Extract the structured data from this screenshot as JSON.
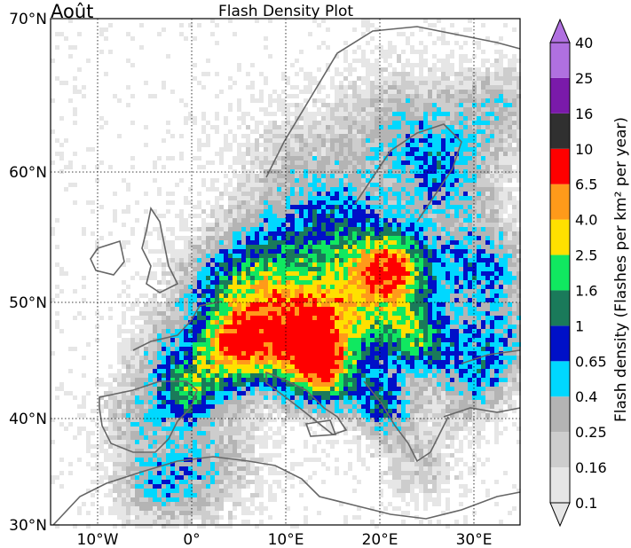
{
  "month_label": "Août",
  "title": "Flash Density Plot",
  "colorbar": {
    "label": "Flash density (Flashes per km² per year)",
    "bins": [
      {
        "label": "0.1",
        "color": "#e6e6e6"
      },
      {
        "label": "0.16",
        "color": "#cdcdcd"
      },
      {
        "label": "0.25",
        "color": "#b4b4b4"
      },
      {
        "label": "0.4",
        "color": "#00d8ff"
      },
      {
        "label": "0.65",
        "color": "#0010c8"
      },
      {
        "label": "1",
        "color": "#1a7a5a"
      },
      {
        "label": "1.6",
        "color": "#10e860"
      },
      {
        "label": "2.5",
        "color": "#ffe000"
      },
      {
        "label": "4.0",
        "color": "#ff9a1a"
      },
      {
        "label": "6.5",
        "color": "#ff0000"
      },
      {
        "label": "10",
        "color": "#303030"
      },
      {
        "label": "16",
        "color": "#7a1aaa"
      },
      {
        "label": "25",
        "color": "#b070e0"
      },
      {
        "label": "40",
        "color": "#b070e0"
      }
    ]
  },
  "axes": {
    "lon_ticks": [
      "10°W",
      "0°",
      "10°E",
      "20°E",
      "30°E"
    ],
    "lat_ticks": [
      "30°N",
      "40°N",
      "50°N",
      "60°N",
      "70°N"
    ]
  }
}
